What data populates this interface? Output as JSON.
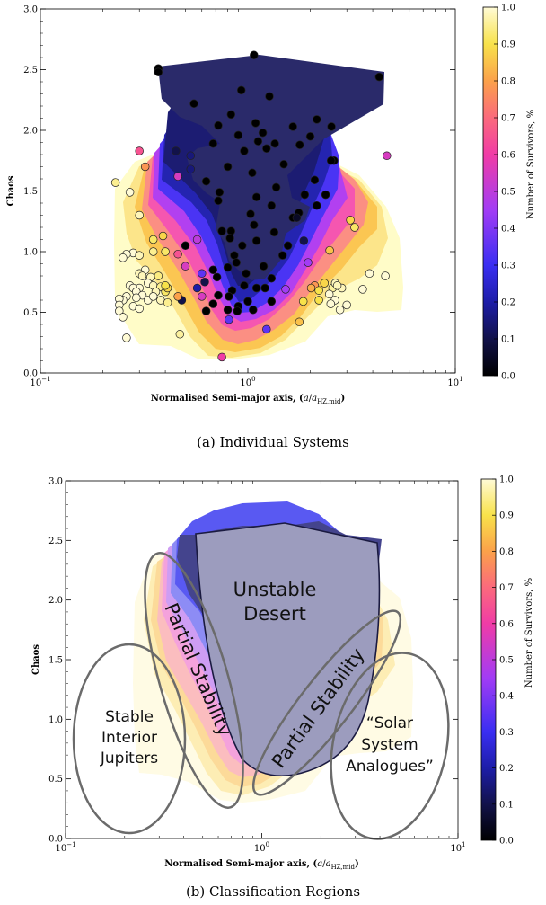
{
  "chart_data": [
    {
      "type": "contour-scatter",
      "caption": "(a) Individual Systems",
      "xlabel": "Normalised Semi-major axis, (a/a_HZ,mid)",
      "ylabel": "Chaos",
      "xscale": "log",
      "xlim": [
        0.1,
        10
      ],
      "ylim": [
        0.0,
        3.0
      ],
      "xticks": [
        {
          "v": 0.1,
          "base": "10",
          "exp": "−1"
        },
        {
          "v": 1,
          "base": "10",
          "exp": "0"
        },
        {
          "v": 10,
          "base": "10",
          "exp": "1"
        }
      ],
      "yticks": [
        "0.0",
        "0.5",
        "1.0",
        "1.5",
        "2.0",
        "2.5",
        "3.0"
      ],
      "colorbar": {
        "label": "Number of Survivors, %",
        "range": [
          0.0,
          1.0
        ],
        "ticks": [
          "0.0",
          "0.1",
          "0.2",
          "0.3",
          "0.4",
          "0.5",
          "0.6",
          "0.7",
          "0.8",
          "0.9",
          "1.0"
        ]
      },
      "points": [
        [
          0.37,
          2.51,
          0.0
        ],
        [
          0.37,
          2.48,
          0.0
        ],
        [
          1.07,
          2.62,
          0.0
        ],
        [
          4.3,
          2.44,
          0.0
        ],
        [
          0.93,
          2.33,
          0.0
        ],
        [
          0.55,
          2.22,
          0.0
        ],
        [
          1.27,
          2.28,
          0.0
        ],
        [
          0.83,
          2.13,
          0.0
        ],
        [
          1.09,
          2.06,
          0.0
        ],
        [
          0.72,
          2.04,
          0.0
        ],
        [
          1.65,
          2.03,
          0.0
        ],
        [
          2.15,
          2.09,
          0.0
        ],
        [
          2.53,
          2.03,
          0.0
        ],
        [
          1.18,
          1.98,
          0.0
        ],
        [
          0.9,
          1.96,
          0.0
        ],
        [
          0.45,
          1.83,
          0.1
        ],
        [
          0.53,
          1.79,
          0.15
        ],
        [
          1.12,
          1.91,
          0.0
        ],
        [
          0.68,
          1.89,
          0.0
        ],
        [
          1.78,
          1.88,
          0.0
        ],
        [
          2.0,
          1.95,
          0.0
        ],
        [
          1.35,
          1.89,
          0.0
        ],
        [
          1.23,
          1.85,
          0.0
        ],
        [
          0.96,
          1.83,
          0.0
        ],
        [
          0.53,
          1.68,
          0.15
        ],
        [
          0.46,
          1.62,
          0.55
        ],
        [
          0.8,
          1.7,
          0.0
        ],
        [
          2.6,
          1.75,
          0.0
        ],
        [
          2.52,
          1.75,
          0.0
        ],
        [
          1.49,
          1.72,
          0.0
        ],
        [
          1.05,
          1.65,
          0.0
        ],
        [
          0.63,
          1.58,
          0.0
        ],
        [
          1.37,
          1.53,
          0.0
        ],
        [
          2.1,
          1.59,
          0.0
        ],
        [
          0.73,
          1.49,
          0.0
        ],
        [
          1.88,
          1.47,
          0.0
        ],
        [
          2.37,
          1.47,
          0.0
        ],
        [
          1.1,
          1.45,
          0.0
        ],
        [
          0.72,
          1.42,
          0.0
        ],
        [
          1.3,
          1.38,
          0.0
        ],
        [
          2.15,
          1.38,
          0.0
        ],
        [
          1.76,
          1.32,
          0.0
        ],
        [
          1.03,
          1.31,
          0.0
        ],
        [
          1.65,
          1.28,
          0.0
        ],
        [
          1.72,
          1.28,
          0.05
        ],
        [
          1.07,
          1.22,
          0.0
        ],
        [
          0.83,
          1.17,
          0.0
        ],
        [
          0.75,
          1.17,
          0.0
        ],
        [
          1.34,
          1.16,
          0.0
        ],
        [
          1.56,
          1.05,
          0.0
        ],
        [
          0.82,
          1.11,
          0.0
        ],
        [
          1.1,
          1.09,
          0.0
        ],
        [
          0.57,
          1.1,
          0.5
        ],
        [
          0.5,
          1.05,
          0.0
        ],
        [
          1.86,
          1.09,
          0.1
        ],
        [
          0.94,
          1.05,
          0.0
        ],
        [
          0.86,
          0.97,
          0.0
        ],
        [
          1.47,
          0.97,
          0.0
        ],
        [
          0.88,
          0.91,
          0.0
        ],
        [
          1.19,
          0.88,
          0.0
        ],
        [
          0.8,
          0.87,
          0.0
        ],
        [
          0.68,
          0.85,
          0.0
        ],
        [
          1.95,
          0.91,
          0.45
        ],
        [
          0.6,
          0.82,
          0.35
        ],
        [
          0.98,
          0.82,
          0.0
        ],
        [
          1.3,
          0.78,
          0.0
        ],
        [
          0.96,
          0.72,
          0.0
        ],
        [
          0.71,
          0.79,
          0.0
        ],
        [
          0.62,
          0.75,
          0.1
        ],
        [
          0.57,
          0.7,
          0.2
        ],
        [
          1.52,
          0.69,
          0.45
        ],
        [
          0.84,
          0.68,
          0.0
        ],
        [
          1.1,
          0.7,
          0.0
        ],
        [
          1.21,
          0.7,
          0.0
        ],
        [
          0.81,
          0.63,
          0.0
        ],
        [
          0.72,
          0.64,
          0.0
        ],
        [
          0.6,
          0.63,
          0.55
        ],
        [
          0.48,
          0.6,
          0.1
        ],
        [
          1.3,
          0.59,
          0.0
        ],
        [
          1.0,
          0.59,
          0.0
        ],
        [
          0.68,
          0.57,
          0.0
        ],
        [
          0.9,
          0.55,
          0.0
        ],
        [
          1.06,
          0.52,
          0.0
        ],
        [
          0.8,
          0.52,
          0.0
        ],
        [
          0.63,
          0.51,
          0.0
        ],
        [
          0.81,
          0.44,
          0.35
        ],
        [
          1.23,
          0.36,
          0.35
        ],
        [
          0.89,
          0.51,
          0.0
        ],
        [
          0.23,
          1.57,
          0.95
        ],
        [
          0.3,
          1.83,
          0.65
        ],
        [
          0.32,
          1.7,
          0.78
        ],
        [
          0.27,
          1.49,
          1.0
        ],
        [
          0.3,
          1.3,
          0.98
        ],
        [
          0.35,
          1.1,
          0.92
        ],
        [
          0.28,
          0.99,
          1.0
        ],
        [
          0.26,
          0.98,
          1.0
        ],
        [
          0.25,
          0.95,
          1.0
        ],
        [
          0.39,
          1.13,
          0.88
        ],
        [
          0.4,
          1.0,
          0.92
        ],
        [
          0.35,
          1.0,
          0.95
        ],
        [
          0.3,
          0.97,
          0.98
        ],
        [
          0.32,
          0.85,
          1.0
        ],
        [
          0.3,
          0.82,
          0.98
        ],
        [
          0.31,
          0.8,
          0.98
        ],
        [
          0.46,
          0.98,
          0.65
        ],
        [
          0.5,
          0.88,
          0.55
        ],
        [
          0.37,
          0.8,
          0.94
        ],
        [
          0.34,
          0.79,
          0.98
        ],
        [
          0.33,
          0.74,
          1.0
        ],
        [
          0.35,
          0.72,
          0.98
        ],
        [
          0.38,
          0.71,
          0.95
        ],
        [
          0.36,
          0.67,
          0.98
        ],
        [
          0.3,
          0.7,
          1.0
        ],
        [
          0.27,
          0.72,
          1.0
        ],
        [
          0.28,
          0.7,
          1.0
        ],
        [
          0.29,
          0.67,
          1.0
        ],
        [
          0.31,
          0.64,
          1.0
        ],
        [
          0.29,
          0.62,
          1.0
        ],
        [
          0.26,
          0.63,
          1.0
        ],
        [
          0.25,
          0.6,
          1.0
        ],
        [
          0.24,
          0.61,
          1.0
        ],
        [
          0.24,
          0.56,
          1.0
        ],
        [
          0.24,
          0.51,
          1.0
        ],
        [
          0.25,
          0.46,
          1.0
        ],
        [
          0.28,
          0.55,
          1.0
        ],
        [
          0.3,
          0.53,
          1.0
        ],
        [
          0.33,
          0.6,
          1.0
        ],
        [
          0.35,
          0.63,
          1.0
        ],
        [
          0.38,
          0.6,
          0.98
        ],
        [
          0.4,
          0.67,
          0.92
        ],
        [
          0.41,
          0.7,
          0.88
        ],
        [
          0.46,
          0.63,
          0.8
        ],
        [
          0.4,
          0.72,
          0.9
        ],
        [
          0.26,
          0.29,
          1.0
        ],
        [
          0.47,
          0.32,
          0.96
        ],
        [
          0.75,
          0.13,
          0.6
        ],
        [
          0.41,
          0.58,
          0.95
        ],
        [
          2.48,
          1.01,
          0.85
        ],
        [
          3.12,
          1.26,
          0.88
        ],
        [
          3.27,
          1.2,
          0.92
        ],
        [
          4.68,
          1.79,
          0.55
        ],
        [
          2.1,
          0.72,
          0.78
        ],
        [
          2.02,
          0.7,
          0.82
        ],
        [
          2.34,
          0.74,
          0.88
        ],
        [
          2.2,
          0.6,
          0.9
        ],
        [
          2.56,
          0.7,
          0.96
        ],
        [
          2.64,
          0.74,
          0.98
        ],
        [
          2.84,
          0.7,
          0.98
        ],
        [
          2.7,
          0.72,
          0.98
        ],
        [
          2.47,
          0.65,
          1.0
        ],
        [
          2.63,
          0.6,
          1.0
        ],
        [
          2.51,
          0.57,
          1.0
        ],
        [
          3.58,
          0.69,
          1.0
        ],
        [
          3.86,
          0.82,
          1.0
        ],
        [
          4.6,
          0.8,
          1.0
        ],
        [
          3.0,
          0.56,
          1.0
        ],
        [
          2.78,
          0.52,
          1.0
        ],
        [
          1.85,
          0.59,
          0.9
        ],
        [
          1.77,
          0.42,
          0.85
        ],
        [
          2.2,
          0.68,
          0.9
        ]
      ]
    },
    {
      "type": "contour",
      "caption": "(b) Classification Regions",
      "xlabel": "Normalised Semi-major axis, (a/a_HZ,mid)",
      "ylabel": "Chaos",
      "xscale": "log",
      "xlim": [
        0.1,
        10
      ],
      "ylim": [
        0.0,
        3.0
      ],
      "xticks": [
        {
          "v": 0.1,
          "base": "10",
          "exp": "−1"
        },
        {
          "v": 1,
          "base": "10",
          "exp": "0"
        },
        {
          "v": 10,
          "base": "10",
          "exp": "1"
        }
      ],
      "yticks": [
        "0.0",
        "0.5",
        "1.0",
        "1.5",
        "2.0",
        "2.5",
        "3.0"
      ],
      "colorbar": {
        "label": "Number of Survivors, %",
        "range": [
          0.0,
          1.0
        ],
        "ticks": [
          "0.0",
          "0.1",
          "0.2",
          "0.3",
          "0.4",
          "0.5",
          "0.6",
          "0.7",
          "0.8",
          "0.9",
          "1.0"
        ]
      },
      "regions": [
        "Unstable Desert",
        "Partial Stability",
        "Partial Stability",
        "Stable Interior Jupiters",
        "“Solar System Analogues”"
      ]
    }
  ],
  "labels": {
    "ylabel": "Chaos",
    "xlabel_main": "Normalised Semi-major axis, (",
    "xlabel_a": "a",
    "xlabel_slash": "/",
    "xlabel_sub": "HZ,mid",
    "xlabel_close": ")",
    "cbar_label": "Number of Survivors, %",
    "caption_a": "(a) Individual Systems",
    "caption_b": "(b) Classification Regions",
    "region_desert_1": "Unstable",
    "region_desert_2": "Desert",
    "region_partial": "Partial Stability",
    "region_stable_1": "Stable",
    "region_stable_2": "Interior",
    "region_stable_3": "Jupiters",
    "region_solar_1": "“Solar",
    "region_solar_2": "System",
    "region_solar_3": "Analogues”"
  }
}
